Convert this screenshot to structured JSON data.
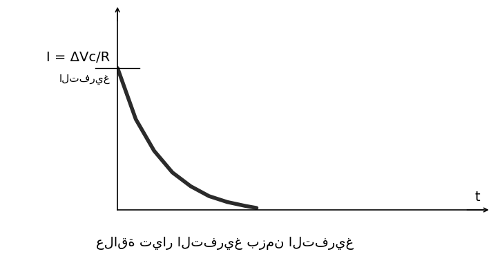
{
  "chart_data": {
    "type": "line",
    "x": [
      0,
      0.5,
      1,
      1.5,
      2,
      2.5,
      3,
      3.5,
      3.8
    ],
    "values": [
      7.2,
      4.6,
      3.0,
      1.9,
      1.2,
      0.7,
      0.4,
      0.2,
      0.1
    ],
    "xlim": [
      0,
      10
    ],
    "ylim": [
      0,
      10
    ],
    "xticks": [],
    "yticks": [],
    "tick_labels": false,
    "color": "#2b2b2b",
    "y_label": "I = ΔVc/R",
    "y_label_sub": "التفريغ",
    "x_label": "t",
    "caption": "علاقة تيار التفريغ بزمن التفريغ"
  }
}
